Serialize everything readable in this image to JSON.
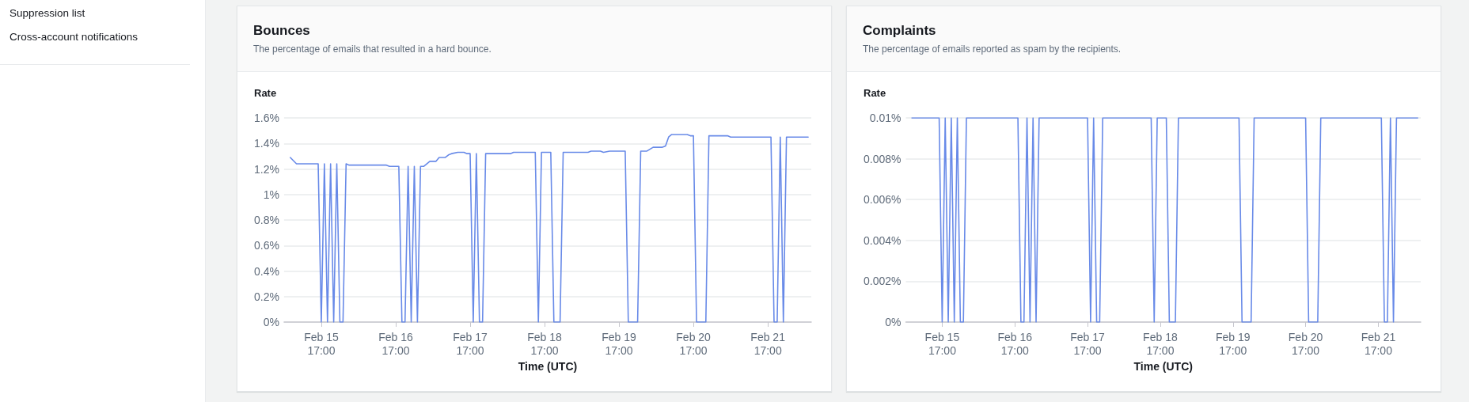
{
  "chart_data": [
    {
      "type": "other",
      "annotations": [
        "Suppression list",
        "Cross-account notifications"
      ]
    },
    {
      "type": "line",
      "title": "Bounces",
      "subtitle": "The percentage of emails that resulted in a hard bounce.",
      "xlabel": "Time (UTC)",
      "ylabel": "Rate",
      "color": "#688ae8",
      "marker": "none",
      "grid": "y",
      "x": [
        "--02-15T07:00",
        "--02-15T09:00",
        "--02-15T16:00",
        "--02-15T17:00",
        "--02-15T18:00",
        "--02-15T19:00",
        "--02-15T20:00",
        "--02-15T21:00",
        "--02-15T22:00",
        "--02-15T23:00",
        "--02-16T00:00",
        "--02-16T01:00",
        "--02-16T02:00",
        "--02-16T14:00",
        "--02-16T15:00",
        "--02-16T18:00",
        "--02-16T19:00",
        "--02-16T20:00",
        "--02-16T21:00",
        "--02-16T22:00",
        "--02-16T23:00",
        "--02-17T00:00",
        "--02-17T01:00",
        "--02-17T02:00",
        "--02-17T04:00",
        "--02-17T06:00",
        "--02-17T07:00",
        "--02-17T09:00",
        "--02-17T10:00",
        "--02-17T11:00",
        "--02-17T13:00",
        "--02-17T15:00",
        "--02-17T16:00",
        "--02-17T17:00",
        "--02-17T18:00",
        "--02-17T19:00",
        "--02-17T20:00",
        "--02-17T21:00",
        "--02-17T22:00",
        "--02-18T06:00",
        "--02-18T07:00",
        "--02-18T14:00",
        "--02-18T15:00",
        "--02-18T16:00",
        "--02-18T19:00",
        "--02-18T20:00",
        "--02-18T21:00",
        "--02-18T22:00",
        "--02-18T23:00",
        "--02-19T07:00",
        "--02-19T08:00",
        "--02-19T11:00",
        "--02-19T12:00",
        "--02-19T14:00",
        "--02-19T19:00",
        "--02-19T20:00",
        "--02-19T21:00",
        "--02-19T22:00",
        "--02-19T23:00",
        "--02-20T00:00",
        "--02-20T02:00",
        "--02-20T04:00",
        "--02-20T07:00",
        "--02-20T08:00",
        "--02-20T09:00",
        "--02-20T10:00",
        "--02-20T15:00",
        "--02-20T16:00",
        "--02-20T17:00",
        "--02-20T18:00",
        "--02-20T19:00",
        "--02-20T20:00",
        "--02-20T21:00",
        "--02-20T22:00",
        "--02-21T04:00",
        "--02-21T05:00",
        "--02-21T18:00",
        "--02-21T19:00",
        "--02-21T20:00",
        "--02-21T21:00",
        "--02-21T22:00",
        "--02-21T23:00",
        "--02-22T06:00"
      ],
      "values": [
        1.29,
        1.24,
        1.24,
        0,
        1.24,
        0,
        1.24,
        0,
        1.24,
        0,
        0,
        1.24,
        1.23,
        1.23,
        1.22,
        1.22,
        0,
        0,
        1.22,
        0,
        1.22,
        0,
        1.22,
        1.22,
        1.26,
        1.26,
        1.29,
        1.29,
        1.31,
        1.32,
        1.33,
        1.33,
        1.32,
        1.32,
        0,
        1.32,
        0,
        0,
        1.32,
        1.32,
        1.33,
        1.33,
        0,
        1.33,
        1.33,
        0,
        0,
        0,
        1.33,
        1.33,
        1.34,
        1.34,
        1.33,
        1.34,
        1.34,
        0,
        0,
        0,
        0,
        1.34,
        1.34,
        1.37,
        1.37,
        1.38,
        1.45,
        1.47,
        1.47,
        1.46,
        1.46,
        0,
        0,
        0,
        0,
        1.46,
        1.46,
        1.45,
        1.45,
        0,
        0,
        1.45,
        0,
        1.45,
        1.45
      ],
      "xlim": [
        "--02-15T05:00",
        "--02-22T07:00"
      ],
      "xticks": [
        {
          "value": "--02-15T17:00",
          "label": "Feb 15\n17:00"
        },
        {
          "value": "--02-16T17:00",
          "label": "Feb 16\n17:00"
        },
        {
          "value": "--02-17T17:00",
          "label": "Feb 17\n17:00"
        },
        {
          "value": "--02-18T17:00",
          "label": "Feb 18\n17:00"
        },
        {
          "value": "--02-19T17:00",
          "label": "Feb 19\n17:00"
        },
        {
          "value": "--02-20T17:00",
          "label": "Feb 20\n17:00"
        },
        {
          "value": "--02-21T17:00",
          "label": "Feb 21\n17:00"
        }
      ],
      "ylim": [
        0,
        1.6
      ],
      "yticks": [
        {
          "value": 0,
          "label": "0%"
        },
        {
          "value": 0.2,
          "label": "0.2%"
        },
        {
          "value": 0.4,
          "label": "0.4%"
        },
        {
          "value": 0.6,
          "label": "0.6%"
        },
        {
          "value": 0.8,
          "label": "0.8%"
        },
        {
          "value": 1,
          "label": "1%"
        },
        {
          "value": 1.2,
          "label": "1.2%"
        },
        {
          "value": 1.4,
          "label": "1.4%"
        },
        {
          "value": 1.6,
          "label": "1.6%"
        }
      ]
    },
    {
      "type": "line",
      "title": "Complaints",
      "subtitle": "The percentage of emails reported as spam by the recipients.",
      "xlabel": "Time (UTC)",
      "ylabel": "Rate",
      "color": "#688ae8",
      "marker": "none",
      "grid": "y",
      "x": [
        "--02-15T07:00",
        "--02-15T16:00",
        "--02-15T17:00",
        "--02-15T18:00",
        "--02-15T19:00",
        "--02-15T20:00",
        "--02-15T21:00",
        "--02-15T22:00",
        "--02-15T23:00",
        "--02-16T00:00",
        "--02-16T01:00",
        "--02-16T18:00",
        "--02-16T19:00",
        "--02-16T20:00",
        "--02-16T21:00",
        "--02-16T22:00",
        "--02-16T23:00",
        "--02-17T00:00",
        "--02-17T01:00",
        "--02-17T17:00",
        "--02-17T18:00",
        "--02-17T19:00",
        "--02-17T20:00",
        "--02-17T21:00",
        "--02-17T22:00",
        "--02-18T14:00",
        "--02-18T15:00",
        "--02-18T16:00",
        "--02-18T19:00",
        "--02-18T20:00",
        "--02-18T21:00",
        "--02-18T22:00",
        "--02-18T23:00",
        "--02-19T19:00",
        "--02-19T20:00",
        "--02-19T21:00",
        "--02-19T22:00",
        "--02-19T23:00",
        "--02-20T00:00",
        "--02-20T17:00",
        "--02-20T18:00",
        "--02-20T19:00",
        "--02-20T20:00",
        "--02-20T21:00",
        "--02-20T22:00",
        "--02-21T18:00",
        "--02-21T19:00",
        "--02-21T20:00",
        "--02-21T21:00",
        "--02-21T22:00",
        "--02-21T23:00",
        "--02-22T06:00"
      ],
      "values": [
        0.01,
        0.01,
        0,
        0.01,
        0,
        0.01,
        0,
        0.01,
        0,
        0,
        0.01,
        0.01,
        0,
        0,
        0.01,
        0,
        0.01,
        0,
        0.01,
        0.01,
        0,
        0.01,
        0,
        0,
        0.01,
        0.01,
        0,
        0.01,
        0.01,
        0,
        0,
        0,
        0.01,
        0.01,
        0,
        0,
        0,
        0,
        0.01,
        0.01,
        0,
        0,
        0,
        0,
        0.01,
        0.01,
        0,
        0,
        0.01,
        0,
        0.01,
        0.01
      ],
      "xlim": [
        "--02-15T05:00",
        "--02-22T07:00"
      ],
      "xticks": [
        {
          "value": "--02-15T17:00",
          "label": "Feb 15\n17:00"
        },
        {
          "value": "--02-16T17:00",
          "label": "Feb 16\n17:00"
        },
        {
          "value": "--02-17T17:00",
          "label": "Feb 17\n17:00"
        },
        {
          "value": "--02-18T17:00",
          "label": "Feb 18\n17:00"
        },
        {
          "value": "--02-19T17:00",
          "label": "Feb 19\n17:00"
        },
        {
          "value": "--02-20T17:00",
          "label": "Feb 20\n17:00"
        },
        {
          "value": "--02-21T17:00",
          "label": "Feb 21\n17:00"
        }
      ],
      "ylim": [
        0,
        0.01
      ],
      "yticks": [
        {
          "value": 0,
          "label": "0%"
        },
        {
          "value": 0.002,
          "label": "0.002%"
        },
        {
          "value": 0.004,
          "label": "0.004%"
        },
        {
          "value": 0.006,
          "label": "0.006%"
        },
        {
          "value": 0.008,
          "label": "0.008%"
        },
        {
          "value": 0.01,
          "label": "0.01%"
        }
      ]
    }
  ]
}
